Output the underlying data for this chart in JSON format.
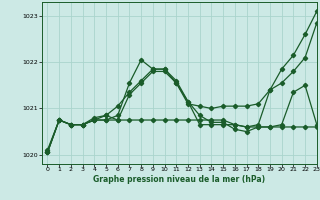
{
  "title": "Graphe pression niveau de la mer (hPa)",
  "background_color": "#cce9e5",
  "grid_color": "#aad4cc",
  "line_color": "#1a5c2a",
  "xlim": [
    -0.5,
    23
  ],
  "ylim": [
    1019.8,
    1023.3
  ],
  "yticks": [
    1020,
    1021,
    1022,
    1023
  ],
  "xticks": [
    0,
    1,
    2,
    3,
    4,
    5,
    6,
    7,
    8,
    9,
    10,
    11,
    12,
    13,
    14,
    15,
    16,
    17,
    18,
    19,
    20,
    21,
    22,
    23
  ],
  "series": [
    {
      "x": [
        0,
        1,
        2,
        3,
        4,
        5,
        6,
        7,
        8,
        9,
        10,
        11,
        12,
        13,
        14,
        15,
        16,
        17,
        18,
        19,
        20,
        21,
        22,
        23
      ],
      "y": [
        1020.05,
        1020.75,
        1020.65,
        1020.65,
        1020.75,
        1020.75,
        1020.75,
        1021.3,
        1021.55,
        1021.8,
        1021.8,
        1021.55,
        1021.1,
        1021.05,
        1021.0,
        1021.05,
        1021.05,
        1021.05,
        1021.1,
        1021.4,
        1021.55,
        1021.8,
        1022.1,
        1022.85
      ]
    },
    {
      "x": [
        0,
        1,
        2,
        3,
        4,
        5,
        6,
        7,
        8,
        9,
        10,
        11,
        12,
        13,
        14,
        15,
        16,
        17,
        18,
        19,
        20,
        21,
        22,
        23
      ],
      "y": [
        1020.1,
        1020.75,
        1020.65,
        1020.65,
        1020.75,
        1020.75,
        1020.85,
        1021.55,
        1022.05,
        1021.85,
        1021.85,
        1021.55,
        1021.15,
        1020.65,
        1020.65,
        1020.65,
        1020.65,
        1020.6,
        1020.65,
        1021.4,
        1021.85,
        1022.15,
        1022.6,
        1023.1
      ]
    },
    {
      "x": [
        0,
        1,
        2,
        3,
        4,
        5,
        6,
        7,
        8,
        9,
        10,
        11,
        12,
        13,
        14,
        15,
        16,
        17,
        18,
        19,
        20,
        21,
        22,
        23
      ],
      "y": [
        1020.05,
        1020.75,
        1020.65,
        1020.65,
        1020.75,
        1020.85,
        1021.05,
        1021.35,
        1021.6,
        1021.85,
        1021.85,
        1021.6,
        1021.15,
        1020.85,
        1020.7,
        1020.7,
        1020.55,
        1020.5,
        1020.6,
        1020.6,
        1020.65,
        1021.35,
        1021.5,
        1020.65
      ]
    },
    {
      "x": [
        0,
        1,
        2,
        3,
        4,
        5,
        6,
        7,
        8,
        9,
        10,
        11,
        12,
        13,
        14,
        15,
        16,
        17,
        18,
        19,
        20,
        21,
        22,
        23
      ],
      "y": [
        1020.05,
        1020.75,
        1020.65,
        1020.65,
        1020.8,
        1020.85,
        1020.75,
        1020.75,
        1020.75,
        1020.75,
        1020.75,
        1020.75,
        1020.75,
        1020.75,
        1020.75,
        1020.75,
        1020.65,
        1020.6,
        1020.6,
        1020.6,
        1020.6,
        1020.6,
        1020.6,
        1020.6
      ]
    }
  ],
  "marker": "D",
  "markersize": 2.2,
  "linewidth": 0.9
}
